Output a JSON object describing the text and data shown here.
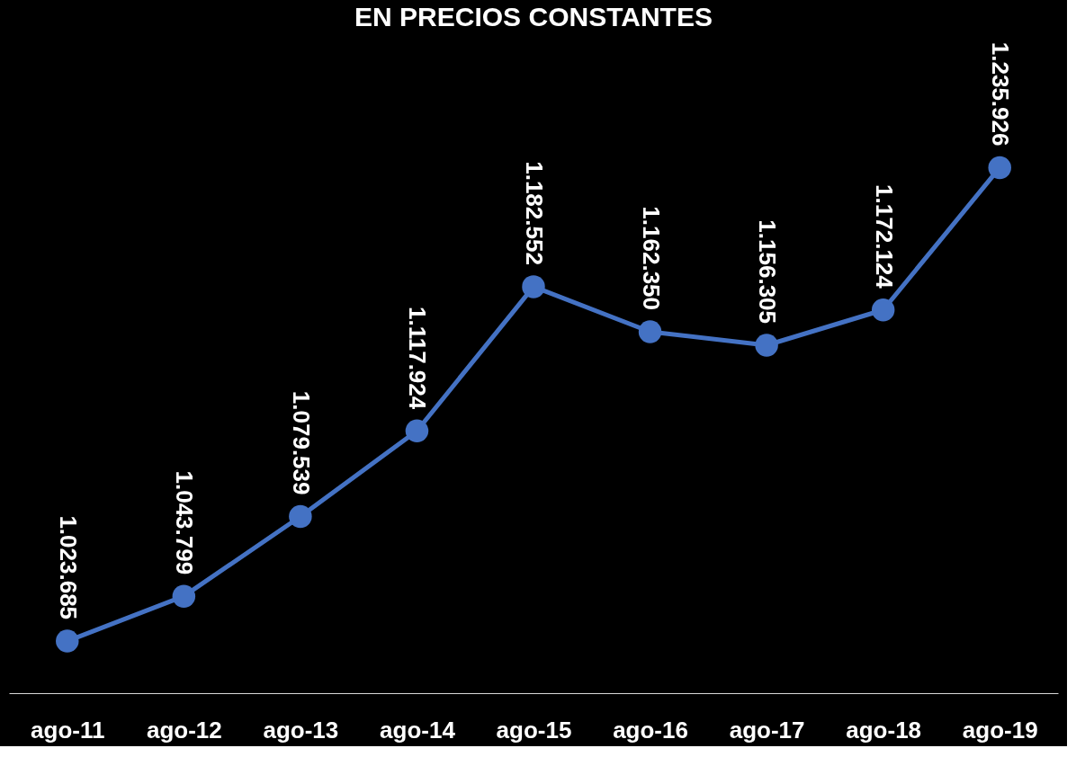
{
  "chart_data": {
    "type": "line",
    "title": "EN PRECIOS CONSTANTES",
    "categories": [
      "ago-11",
      "ago-12",
      "ago-13",
      "ago-14",
      "ago-15",
      "ago-16",
      "ago-17",
      "ago-18",
      "ago-19"
    ],
    "series": [
      {
        "color": "#4472c4",
        "values": [
          1023685,
          1043799,
          1079539,
          1117924,
          1182552,
          1162350,
          1156305,
          1172124,
          1235926
        ],
        "value_labels": [
          "1.023.685",
          "1.043.799",
          "1.079.539",
          "1.117.924",
          "1.182.552",
          "1.162.350",
          "1.156.305",
          "1.172.124",
          "1.235.926"
        ]
      }
    ],
    "marker": "circle",
    "line_style": "solid",
    "grid": false,
    "legend": false,
    "tick_labels": "x"
  }
}
